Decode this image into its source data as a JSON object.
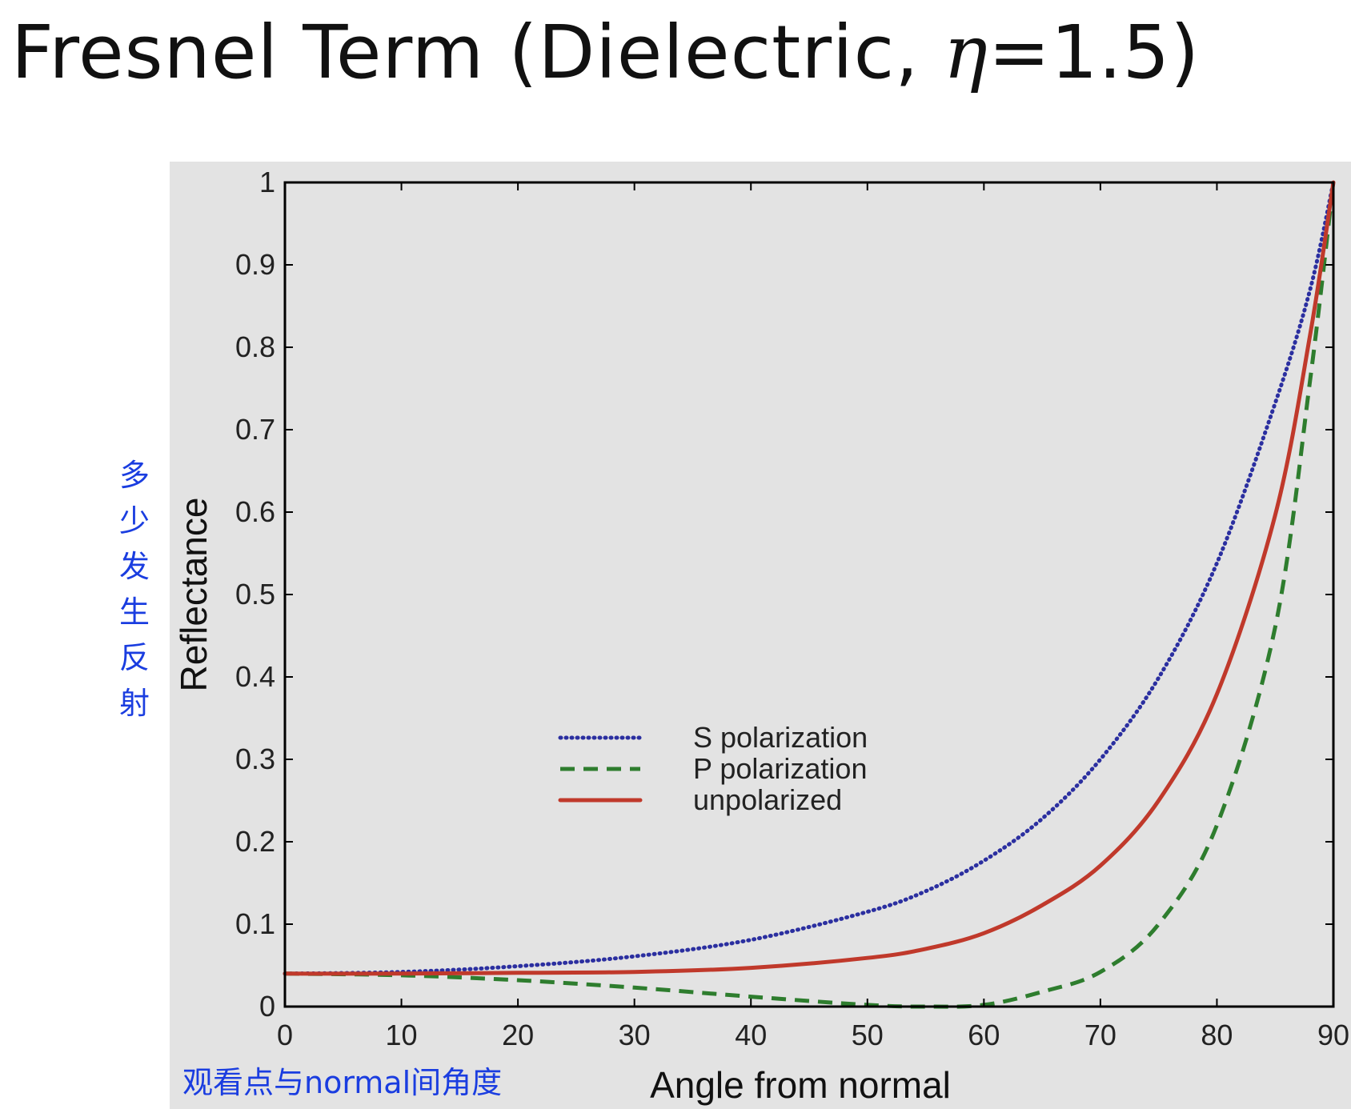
{
  "slide": {
    "title_prefix": "Fresnel Term (Dielectric, ",
    "title_symbol": "η",
    "title_suffix": "=1.5)",
    "annotation_y": "多少发生反射",
    "annotation_x": "观看点与normal间角度"
  },
  "colors": {
    "plot_background": "#e3e3e3",
    "s_polarization": "#2b2fa0",
    "p_polarization": "#2e7d2e",
    "unpolarized": "#c0392b",
    "annotation": "#1a3de0"
  },
  "chart_data": {
    "type": "line",
    "title": "",
    "xlabel": "Angle from normal",
    "ylabel": "Reflectance",
    "xlim": [
      0,
      90
    ],
    "ylim": [
      0,
      1
    ],
    "xticks": [
      0,
      10,
      20,
      30,
      40,
      50,
      60,
      70,
      80,
      90
    ],
    "xtick_labels": [
      "0",
      "10",
      "20",
      "30",
      "40",
      "50",
      "60",
      "70",
      "80",
      "90"
    ],
    "yticks": [
      0,
      0.1,
      0.2,
      0.3,
      0.4,
      0.5,
      0.6,
      0.7,
      0.8,
      0.9,
      1
    ],
    "ytick_labels": [
      "0",
      "0.1",
      "0.2",
      "0.3",
      "0.4",
      "0.5",
      "0.6",
      "0.7",
      "0.8",
      "0.9",
      "1"
    ],
    "grid": false,
    "legend_position": "center-right",
    "x": [
      0,
      10,
      20,
      30,
      40,
      50,
      55,
      60,
      65,
      70,
      75,
      80,
      85,
      88,
      90
    ],
    "series": [
      {
        "name": "S polarization",
        "style": "dotted",
        "values": [
          0.04,
          0.042,
          0.049,
          0.061,
          0.081,
          0.115,
          0.14,
          0.177,
          0.228,
          0.3,
          0.399,
          0.538,
          0.732,
          0.87,
          1.0
        ]
      },
      {
        "name": "P polarization",
        "style": "dashed",
        "values": [
          0.04,
          0.038,
          0.032,
          0.023,
          0.012,
          0.002,
          0.0,
          0.002,
          0.018,
          0.042,
          0.1,
          0.22,
          0.46,
          0.76,
          1.0
        ]
      },
      {
        "name": "unpolarized",
        "style": "solid",
        "values": [
          0.04,
          0.04,
          0.041,
          0.042,
          0.047,
          0.059,
          0.07,
          0.089,
          0.123,
          0.171,
          0.25,
          0.379,
          0.596,
          0.815,
          1.0
        ]
      }
    ]
  }
}
